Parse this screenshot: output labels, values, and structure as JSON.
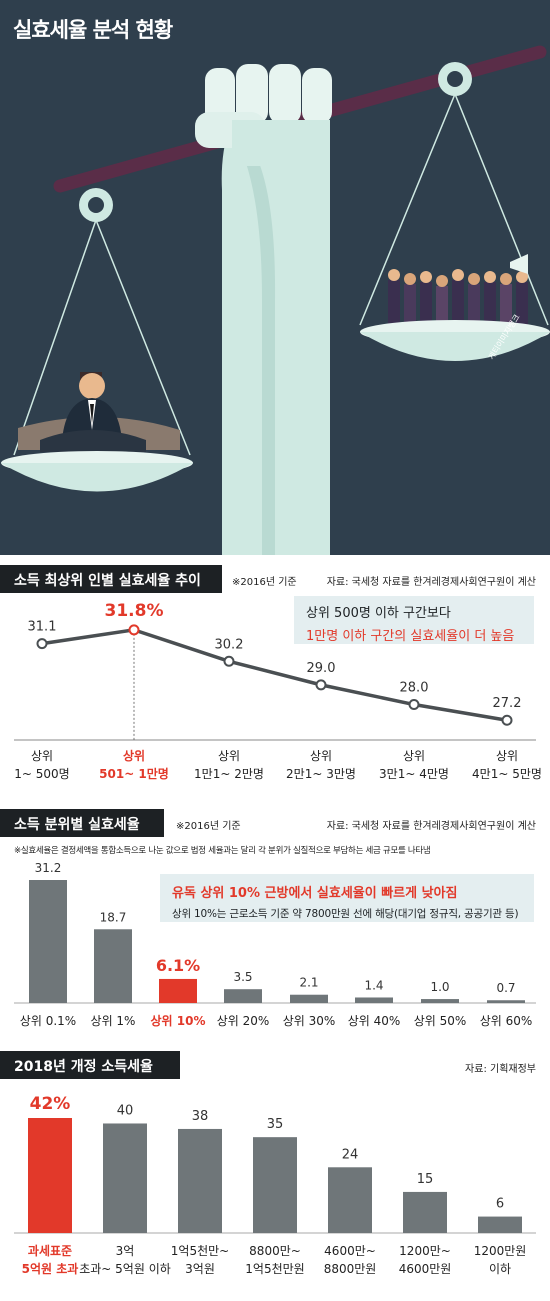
{
  "title": "실효세율 분석 현황",
  "illustration_credit": "게티이미지뱅크",
  "colors": {
    "navy": "#2f3f4d",
    "scale_pale": "#cfe9e2",
    "bar_gray": "#6f7679",
    "accent_red": "#e2392a",
    "callout_bg": "#e4eef0"
  },
  "section1": {
    "title": "소득 최상위 인별 실효세율 추이",
    "note": "※2016년 기준",
    "source": "자료: 국세청 자료를 한겨레경제사회연구원이 계산",
    "callout_line1": "상위 500명 이하 구간보다",
    "callout_line2": "1만명 이하 구간의 실효세율이 더 높음"
  },
  "section2": {
    "title": "소득 분위별 실효세율",
    "note": "※2016년 기준",
    "source": "자료: 국세청 자료를 한겨레경제사회연구원이 계산",
    "footnote": "※실효세율은 결정세액을 통합소득으로 나눈 값으로 법정 세율과는 달리 각 분위가 실질적으로 부담하는 세금 규모를 나타냄",
    "callout_line1": "유독 상위 10% 근방에서 실효세율이 빠르게 낮아짐",
    "callout_line2": "상위 10%는 근로소득 기준 약 7800만원 선에 해당(대기업 정규직, 공공기관 등)"
  },
  "section3": {
    "title": "2018년 개정 소득세율",
    "source": "자료: 기획재정부"
  },
  "chart_data": [
    {
      "type": "line",
      "categories": [
        "상위 1~ 500명",
        "상위 501~ 1만명",
        "상위 1만1~ 2만명",
        "상위 2만1~ 3만명",
        "상위 3만1~ 4만명",
        "상위 4만1~ 5만명"
      ],
      "values": [
        31.1,
        31.8,
        30.2,
        29.0,
        28.0,
        27.2
      ],
      "data_labels": [
        "31.1",
        "31.8%",
        "30.2",
        "29.0",
        "28.0",
        "27.2"
      ],
      "highlight_index": 1,
      "ylim": [
        26.5,
        32.2
      ]
    },
    {
      "type": "bar",
      "categories": [
        "상위 0.1%",
        "상위 1%",
        "상위 10%",
        "상위 20%",
        "상위 30%",
        "상위 40%",
        "상위 50%",
        "상위 60%"
      ],
      "values": [
        31.2,
        18.7,
        6.1,
        3.5,
        2.1,
        1.4,
        1.0,
        0.7
      ],
      "data_labels": [
        "31.2",
        "18.7",
        "6.1%",
        "3.5",
        "2.1",
        "1.4",
        "1.0",
        "0.7"
      ],
      "highlight_index": 2,
      "ylim": [
        0,
        31.2
      ]
    },
    {
      "type": "bar",
      "categories": [
        "과세표준 5억원 초과",
        "3억 초과~ 5억원 이하",
        "1억5천만~ 3억원",
        "8800만~ 1억5천만원",
        "4600만~ 8800만원",
        "1200만~ 4600만원",
        "1200만원 이하"
      ],
      "values": [
        42,
        40,
        38,
        35,
        24,
        15,
        6
      ],
      "data_labels": [
        "42%",
        "40",
        "38",
        "35",
        "24",
        "15",
        "6"
      ],
      "highlight_index": 0,
      "ylim": [
        0,
        42
      ]
    }
  ]
}
